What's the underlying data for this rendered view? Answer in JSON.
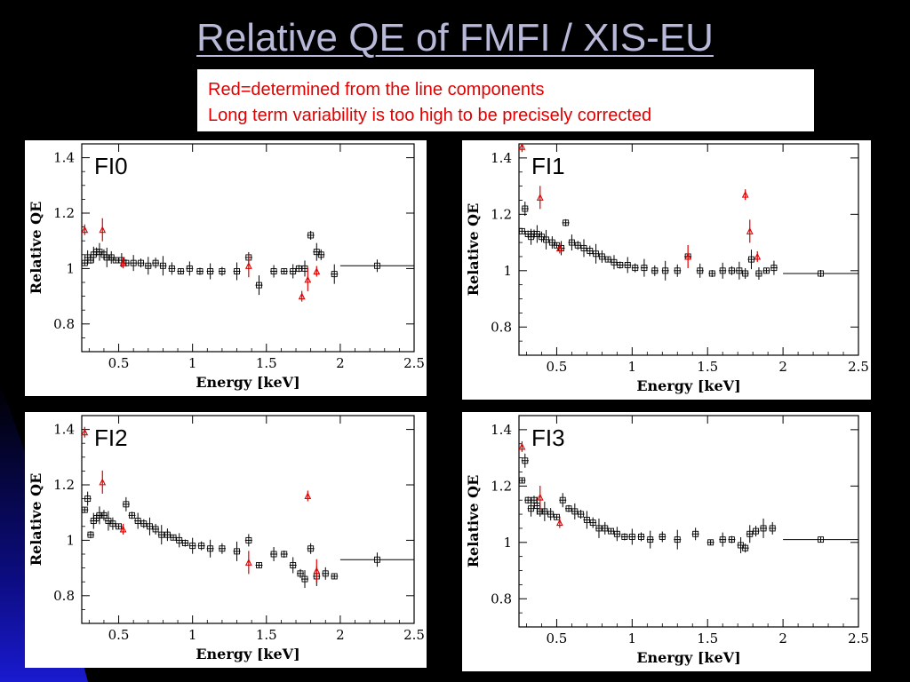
{
  "slide": {
    "title": "Relative QE of FMFI / XIS-EU",
    "note_lines": [
      "Red=determined from the line components",
      "Long term variability is too high to be precisely corrected"
    ]
  },
  "colors": {
    "continuum": "#000000",
    "line_components": "#e00000"
  },
  "chart_data": [
    {
      "type": "scatter",
      "title": "FI0",
      "xlabel": "Energy [keV]",
      "ylabel": "Relative QE",
      "xlim": [
        0.25,
        2.5
      ],
      "ylim": [
        0.7,
        1.45
      ],
      "xticks": [
        "0.5",
        "1",
        "1.5",
        "2",
        "2.5"
      ],
      "yticks": [
        "0.8",
        "1",
        "1.2",
        "1.4"
      ],
      "series": [
        {
          "color": "#000000",
          "points": [
            [
              0.27,
              1.02
            ],
            [
              0.29,
              1.04
            ],
            [
              0.31,
              1.03
            ],
            [
              0.33,
              1.05
            ],
            [
              0.35,
              1.06
            ],
            [
              0.37,
              1.06
            ],
            [
              0.4,
              1.05
            ],
            [
              0.42,
              1.04
            ],
            [
              0.45,
              1.04
            ],
            [
              0.48,
              1.03
            ],
            [
              0.52,
              1.03
            ],
            [
              0.55,
              1.02
            ],
            [
              0.6,
              1.02
            ],
            [
              0.65,
              1.02
            ],
            [
              0.7,
              1.01
            ],
            [
              0.75,
              1.02
            ],
            [
              0.8,
              1.01
            ],
            [
              0.86,
              1.0
            ],
            [
              0.92,
              0.99
            ],
            [
              0.98,
              1.0
            ],
            [
              1.05,
              0.99
            ],
            [
              1.12,
              0.99
            ],
            [
              1.2,
              0.99
            ],
            [
              1.3,
              0.99
            ],
            [
              1.38,
              1.04
            ],
            [
              1.45,
              0.94
            ],
            [
              1.55,
              0.99
            ],
            [
              1.62,
              0.99
            ],
            [
              1.68,
              0.99
            ],
            [
              1.72,
              1.0
            ],
            [
              1.76,
              1.0
            ],
            [
              1.8,
              1.12
            ],
            [
              1.84,
              1.06
            ],
            [
              1.87,
              1.05
            ],
            [
              1.96,
              0.98
            ],
            [
              2.25,
              1.01
            ]
          ]
        },
        {
          "color": "#e00000",
          "points": [
            [
              0.27,
              1.14
            ],
            [
              0.39,
              1.14
            ],
            [
              0.53,
              1.02
            ],
            [
              1.38,
              1.01
            ],
            [
              1.74,
              0.9
            ],
            [
              1.78,
              0.96
            ],
            [
              1.84,
              0.99
            ]
          ]
        }
      ]
    },
    {
      "type": "scatter",
      "title": "FI1",
      "xlabel": "Energy [keV]",
      "ylabel": "Relative QE",
      "xlim": [
        0.25,
        2.5
      ],
      "ylim": [
        0.7,
        1.45
      ],
      "xticks": [
        "0.5",
        "1",
        "1.5",
        "2",
        "2.5"
      ],
      "yticks": [
        "0.8",
        "1",
        "1.2",
        "1.4"
      ],
      "series": [
        {
          "color": "#000000",
          "points": [
            [
              0.27,
              1.14
            ],
            [
              0.29,
              1.22
            ],
            [
              0.31,
              1.13
            ],
            [
              0.33,
              1.12
            ],
            [
              0.35,
              1.13
            ],
            [
              0.37,
              1.13
            ],
            [
              0.4,
              1.12
            ],
            [
              0.43,
              1.11
            ],
            [
              0.47,
              1.1
            ],
            [
              0.5,
              1.09
            ],
            [
              0.53,
              1.08
            ],
            [
              0.56,
              1.17
            ],
            [
              0.6,
              1.1
            ],
            [
              0.64,
              1.09
            ],
            [
              0.68,
              1.08
            ],
            [
              0.72,
              1.07
            ],
            [
              0.76,
              1.06
            ],
            [
              0.8,
              1.05
            ],
            [
              0.84,
              1.04
            ],
            [
              0.88,
              1.03
            ],
            [
              0.92,
              1.02
            ],
            [
              0.97,
              1.02
            ],
            [
              1.02,
              1.01
            ],
            [
              1.08,
              1.01
            ],
            [
              1.15,
              1.0
            ],
            [
              1.22,
              1.0
            ],
            [
              1.3,
              1.0
            ],
            [
              1.37,
              1.05
            ],
            [
              1.45,
              1.0
            ],
            [
              1.53,
              0.99
            ],
            [
              1.6,
              1.0
            ],
            [
              1.66,
              1.0
            ],
            [
              1.71,
              1.0
            ],
            [
              1.75,
              0.99
            ],
            [
              1.79,
              1.04
            ],
            [
              1.84,
              0.99
            ],
            [
              1.89,
              1.0
            ],
            [
              1.94,
              1.01
            ],
            [
              2.25,
              0.99
            ]
          ]
        },
        {
          "color": "#e00000",
          "points": [
            [
              0.27,
              1.44
            ],
            [
              0.39,
              1.26
            ],
            [
              0.52,
              1.08
            ],
            [
              1.37,
              1.05
            ],
            [
              1.75,
              1.27
            ],
            [
              1.78,
              1.14
            ],
            [
              1.83,
              1.05
            ]
          ]
        }
      ]
    },
    {
      "type": "scatter",
      "title": "FI2",
      "xlabel": "Energy [keV]",
      "ylabel": "Relative QE",
      "xlim": [
        0.25,
        2.5
      ],
      "ylim": [
        0.7,
        1.45
      ],
      "xticks": [
        "0.5",
        "1",
        "1.5",
        "2",
        "2.5"
      ],
      "yticks": [
        "0.8",
        "1",
        "1.2",
        "1.4"
      ],
      "series": [
        {
          "color": "#000000",
          "points": [
            [
              0.27,
              1.11
            ],
            [
              0.29,
              1.15
            ],
            [
              0.31,
              1.02
            ],
            [
              0.33,
              1.07
            ],
            [
              0.35,
              1.08
            ],
            [
              0.37,
              1.09
            ],
            [
              0.4,
              1.09
            ],
            [
              0.43,
              1.07
            ],
            [
              0.46,
              1.06
            ],
            [
              0.5,
              1.05
            ],
            [
              0.55,
              1.13
            ],
            [
              0.59,
              1.09
            ],
            [
              0.63,
              1.07
            ],
            [
              0.67,
              1.06
            ],
            [
              0.71,
              1.05
            ],
            [
              0.75,
              1.04
            ],
            [
              0.79,
              1.02
            ],
            [
              0.83,
              1.02
            ],
            [
              0.87,
              1.01
            ],
            [
              0.91,
              1.0
            ],
            [
              0.95,
              0.99
            ],
            [
              1.0,
              0.98
            ],
            [
              1.06,
              0.98
            ],
            [
              1.12,
              0.97
            ],
            [
              1.2,
              0.97
            ],
            [
              1.3,
              0.96
            ],
            [
              1.38,
              1.0
            ],
            [
              1.45,
              0.91
            ],
            [
              1.55,
              0.95
            ],
            [
              1.62,
              0.95
            ],
            [
              1.68,
              0.91
            ],
            [
              1.73,
              0.88
            ],
            [
              1.76,
              0.86
            ],
            [
              1.8,
              0.97
            ],
            [
              1.84,
              0.87
            ],
            [
              1.9,
              0.88
            ],
            [
              1.96,
              0.87
            ],
            [
              2.25,
              0.93
            ]
          ]
        },
        {
          "color": "#e00000",
          "points": [
            [
              0.27,
              1.39
            ],
            [
              0.39,
              1.21
            ],
            [
              0.53,
              1.04
            ],
            [
              1.38,
              0.92
            ],
            [
              1.78,
              1.16
            ],
            [
              1.84,
              0.89
            ]
          ]
        }
      ]
    },
    {
      "type": "scatter",
      "title": "FI3",
      "xlabel": "Energy [keV]",
      "ylabel": "Relative QE",
      "xlim": [
        0.25,
        2.5
      ],
      "ylim": [
        0.7,
        1.45
      ],
      "xticks": [
        "0.5",
        "1",
        "1.5",
        "2",
        "2.5"
      ],
      "yticks": [
        "0.8",
        "1",
        "1.2",
        "1.4"
      ],
      "series": [
        {
          "color": "#000000",
          "points": [
            [
              0.27,
              1.22
            ],
            [
              0.29,
              1.29
            ],
            [
              0.31,
              1.15
            ],
            [
              0.33,
              1.12
            ],
            [
              0.35,
              1.15
            ],
            [
              0.37,
              1.13
            ],
            [
              0.39,
              1.11
            ],
            [
              0.42,
              1.11
            ],
            [
              0.46,
              1.1
            ],
            [
              0.5,
              1.09
            ],
            [
              0.54,
              1.15
            ],
            [
              0.58,
              1.12
            ],
            [
              0.62,
              1.11
            ],
            [
              0.66,
              1.1
            ],
            [
              0.7,
              1.08
            ],
            [
              0.74,
              1.07
            ],
            [
              0.78,
              1.05
            ],
            [
              0.82,
              1.05
            ],
            [
              0.86,
              1.04
            ],
            [
              0.9,
              1.03
            ],
            [
              0.95,
              1.02
            ],
            [
              1.0,
              1.02
            ],
            [
              1.06,
              1.02
            ],
            [
              1.12,
              1.01
            ],
            [
              1.2,
              1.02
            ],
            [
              1.3,
              1.01
            ],
            [
              1.42,
              1.03
            ],
            [
              1.52,
              1.0
            ],
            [
              1.6,
              1.01
            ],
            [
              1.66,
              1.01
            ],
            [
              1.72,
              0.99
            ],
            [
              1.75,
              0.98
            ],
            [
              1.78,
              1.03
            ],
            [
              1.82,
              1.04
            ],
            [
              1.87,
              1.05
            ],
            [
              1.93,
              1.05
            ],
            [
              2.25,
              1.01
            ]
          ]
        },
        {
          "color": "#e00000",
          "points": [
            [
              0.27,
              1.34
            ],
            [
              0.39,
              1.16
            ],
            [
              0.52,
              1.07
            ]
          ]
        }
      ]
    }
  ]
}
